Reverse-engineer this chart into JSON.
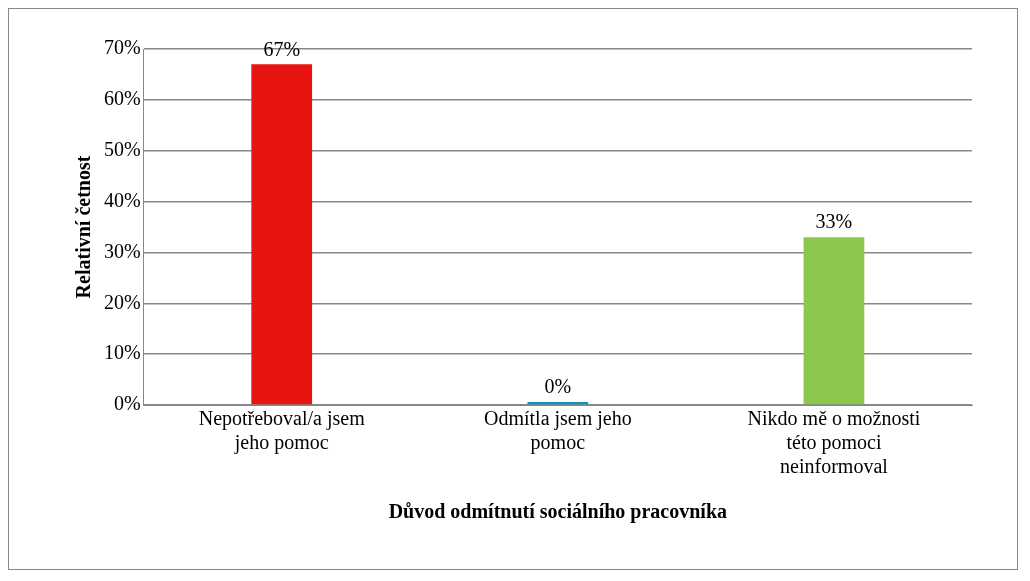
{
  "chart_data": {
    "type": "bar",
    "xlabel": "Důvod odmítnutí sociálního pracovníka",
    "ylabel": "Relativní četnost",
    "categories": [
      "Nepotřeboval/a jsem jeho pomoc",
      "Odmítla jsem jeho pomoc",
      "Nikdo mě o možnosti této pomoci neinformoval"
    ],
    "values": [
      67,
      0,
      33
    ],
    "colors": [
      "#e8140f",
      "#1a8cc0",
      "#8cc84b"
    ],
    "value_labels": [
      "67%",
      "0%",
      "33%"
    ],
    "ylim": [
      0,
      70
    ],
    "yticks": [
      {
        "value": 0,
        "label": "0%"
      },
      {
        "value": 10,
        "label": "10%"
      },
      {
        "value": 20,
        "label": "20%"
      },
      {
        "value": 30,
        "label": "30%"
      },
      {
        "value": 40,
        "label": "40%"
      },
      {
        "value": 50,
        "label": "50%"
      },
      {
        "value": 60,
        "label": "60%"
      },
      {
        "value": 70,
        "label": "70%"
      }
    ],
    "grid": "y",
    "legend": false
  }
}
